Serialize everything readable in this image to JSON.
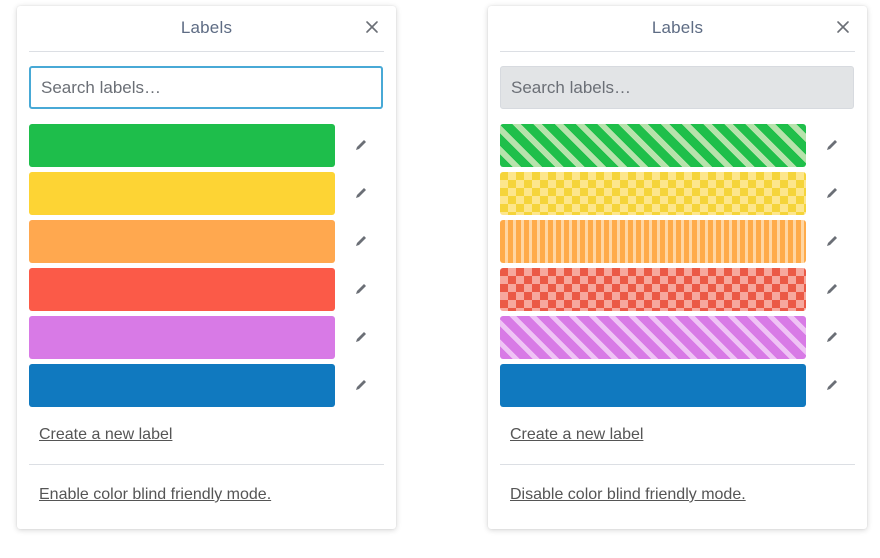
{
  "panels": [
    {
      "id": "left",
      "title": "Labels",
      "search_placeholder": "Search labels…",
      "search_value": "",
      "search_state": "focused",
      "color_blind_mode": false,
      "labels": [
        {
          "color": "#1ebe4b",
          "pattern": "none"
        },
        {
          "color": "#fdd434",
          "pattern": "none"
        },
        {
          "color": "#ffa84f",
          "pattern": "none"
        },
        {
          "color": "#fb5a48",
          "pattern": "none"
        },
        {
          "color": "#d87ae6",
          "pattern": "none"
        },
        {
          "color": "#1079bf",
          "pattern": "none"
        }
      ],
      "create_label": "Create a new label",
      "toggle_label": "Enable color blind friendly mode."
    },
    {
      "id": "right",
      "title": "Labels",
      "search_placeholder": "Search labels…",
      "search_value": "",
      "search_state": "unfocused",
      "color_blind_mode": true,
      "labels": [
        {
          "color": "#1ebe4b",
          "pattern": "diagonal-stripes"
        },
        {
          "color": "#fdd434",
          "pattern": "checker"
        },
        {
          "color": "#ffa84f",
          "pattern": "vertical-stripes"
        },
        {
          "color": "#fb5a48",
          "pattern": "checker"
        },
        {
          "color": "#d87ae6",
          "pattern": "diagonal-stripes"
        },
        {
          "color": "#1079bf",
          "pattern": "none"
        }
      ],
      "create_label": "Create a new label",
      "toggle_label": "Disable color blind friendly mode."
    }
  ],
  "icons": {
    "close": "close-icon",
    "edit": "pencil-icon"
  }
}
